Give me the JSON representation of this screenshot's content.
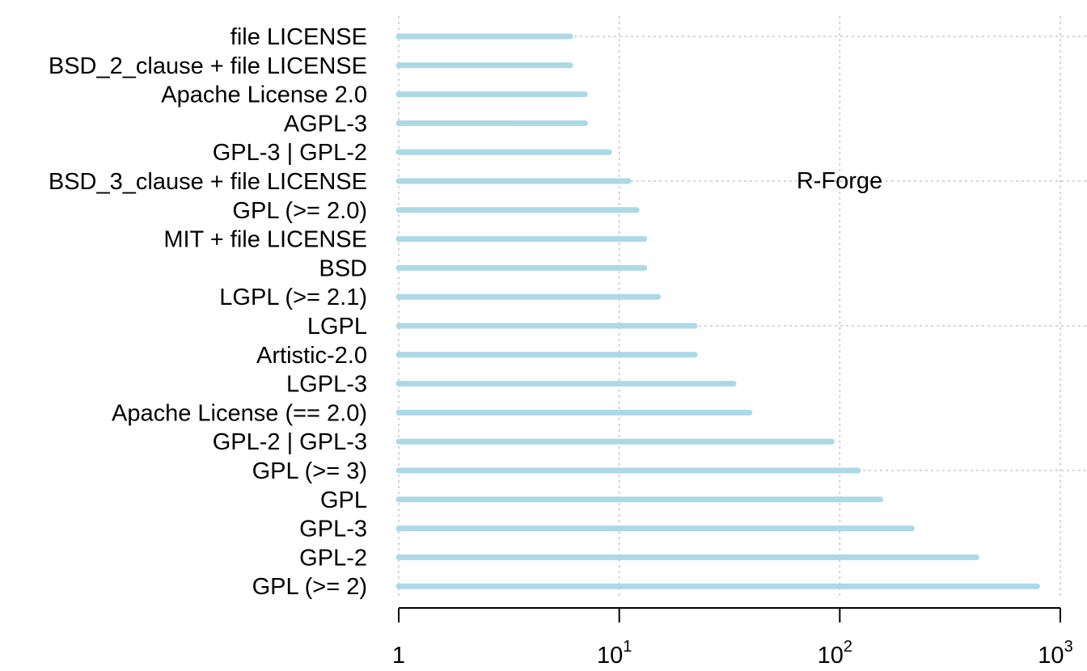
{
  "chart_data": {
    "type": "bar",
    "orientation": "horizontal",
    "x_scale": "log10",
    "xlim": [
      1,
      1000
    ],
    "grid": true,
    "bar_color": "#add8e6",
    "annotation": "R-Forge",
    "x_ticks": [
      {
        "value": 1,
        "base": "1",
        "exp": ""
      },
      {
        "value": 10,
        "base": "10",
        "exp": "1"
      },
      {
        "value": 100,
        "base": "10",
        "exp": "2"
      },
      {
        "value": 1000,
        "base": "10",
        "exp": "3"
      }
    ],
    "categories": [
      "file LICENSE",
      "BSD_2_clause + file LICENSE",
      "Apache License 2.0",
      "AGPL-3",
      "GPL-3 | GPL-2",
      "BSD_3_clause + file LICENSE",
      "GPL (>= 2.0)",
      "MIT + file LICENSE",
      "BSD",
      "LGPL (>= 2.1)",
      "LGPL",
      "Artistic-2.0",
      "LGPL-3",
      "Apache License (== 2.0)",
      "GPL-2 | GPL-3",
      "GPL (>= 3)",
      "GPL",
      "GPL-3",
      "GPL-2",
      "GPL (>= 2)"
    ],
    "values": [
      6,
      6,
      7,
      7,
      9,
      11,
      12,
      13,
      13,
      15,
      22,
      22,
      33,
      39,
      92,
      121,
      153,
      212,
      417,
      786
    ]
  }
}
